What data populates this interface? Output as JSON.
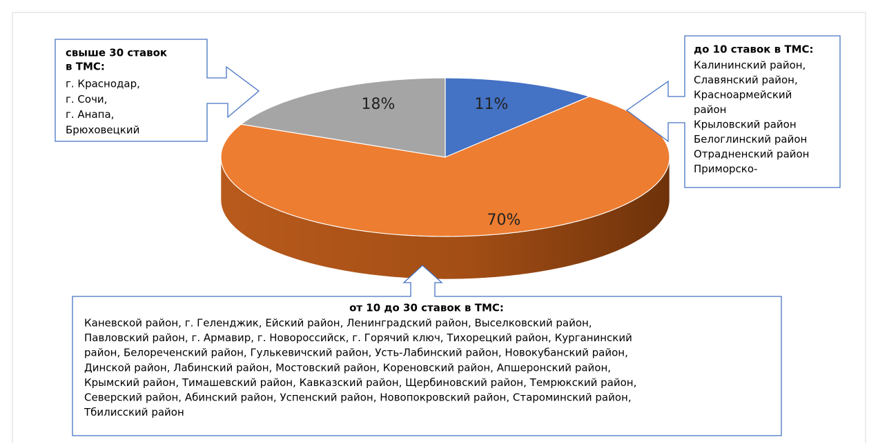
{
  "chart_data": {
    "type": "pie",
    "categories": [
      "до 10 ставок в ТМС",
      "от 10 до 30 ставок в ТМС",
      "свыше 30 ставок в ТМС"
    ],
    "values": [
      11,
      70,
      18
    ],
    "value_labels": [
      "11%",
      "70%",
      "18%"
    ],
    "colors": [
      "#4472c4",
      "#ed7d31",
      "#a5a5a5"
    ],
    "callouts": [
      {
        "title": [
          "до 10 ставок в ТМС:"
        ],
        "lines": [
          "Калининский район,",
          "Славянский район,",
          "Красноармейский",
          "район",
          "Крыловский район",
          "Белоглинский район",
          "Отрадненский район",
          "Приморско-"
        ]
      },
      {
        "title": [
          "от 10 до 30 ставок в ТМС:"
        ],
        "lines": [
          "Каневской район, г. Геленджик, Ейский район, Ленинградский район, Выселковский район,",
          "Павловский район, г. Армавир, г. Новороссийск, г. Горячий ключ, Тихорецкий район, Курганинский",
          "район, Белореченский район, Гулькевичский район, Усть-Лабинский район, Новокубанский район,",
          "Динской район, Лабинский район, Мостовский район, Кореновский район, Апшеронский район,",
          "Крымский район, Тимашевский район, Кавказский район, Щербиновский район, Темрюкский район,",
          "Северский район, Абинский район, Успенский район, Новопокровский район, Староминский район,",
          "Тбилисский район"
        ]
      },
      {
        "title": [
          "свыше 30 ставок",
          "в ТМС:"
        ],
        "lines": [
          "г. Краснодар,",
          "г. Сочи,",
          "г. Анапа,",
          "Брюховецкий"
        ]
      }
    ]
  }
}
